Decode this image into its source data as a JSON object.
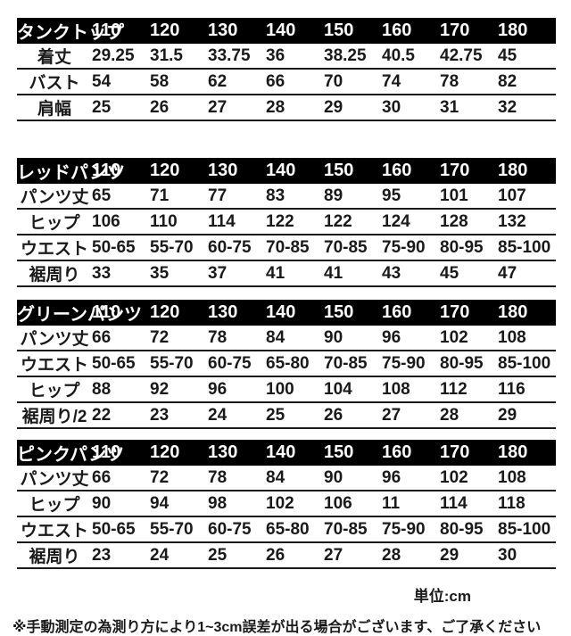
{
  "sizes": [
    "110",
    "120",
    "130",
    "140",
    "150",
    "160",
    "170",
    "180"
  ],
  "tables": [
    {
      "title": "タンクトップ",
      "rows": [
        {
          "label": "着丈",
          "values": [
            "29.25",
            "31.5",
            "33.75",
            "36",
            "38.25",
            "40.5",
            "42.75",
            "45"
          ]
        },
        {
          "label": "バスト",
          "values": [
            "54",
            "58",
            "62",
            "66",
            "70",
            "74",
            "78",
            "82"
          ]
        },
        {
          "label": "肩幅",
          "values": [
            "25",
            "26",
            "27",
            "28",
            "29",
            "30",
            "31",
            "32"
          ]
        }
      ]
    },
    {
      "title": "レッドパンツ",
      "rows": [
        {
          "label": "パンツ丈",
          "values": [
            "65",
            "71",
            "77",
            "83",
            "89",
            "95",
            "101",
            "107"
          ]
        },
        {
          "label": "ヒップ",
          "values": [
            "106",
            "110",
            "114",
            "122",
            "122",
            "124",
            "128",
            "132"
          ]
        },
        {
          "label": "ウエスト",
          "values": [
            "50-65",
            "55-70",
            "60-75",
            "70-85",
            "70-85",
            "75-90",
            "80-95",
            "85-100"
          ]
        },
        {
          "label": "裾周り",
          "values": [
            "33",
            "35",
            "37",
            "41",
            "41",
            "43",
            "45",
            "47"
          ]
        }
      ]
    },
    {
      "title": "グリーンパンツ",
      "rows": [
        {
          "label": "パンツ丈",
          "values": [
            "66",
            "72",
            "78",
            "84",
            "90",
            "96",
            "102",
            "108"
          ]
        },
        {
          "label": "ウエスト",
          "values": [
            "50-65",
            "55-70",
            "60-75",
            "65-80",
            "70-85",
            "75-90",
            "80-95",
            "85-100"
          ]
        },
        {
          "label": "ヒップ",
          "values": [
            "88",
            "92",
            "96",
            "100",
            "104",
            "108",
            "112",
            "116"
          ]
        },
        {
          "label": "裾周り/2",
          "values": [
            "22",
            "23",
            "24",
            "25",
            "26",
            "27",
            "28",
            "29"
          ]
        }
      ]
    },
    {
      "title": "ピンクパンツ",
      "rows": [
        {
          "label": "パンツ丈",
          "values": [
            "66",
            "72",
            "78",
            "84",
            "90",
            "96",
            "102",
            "108"
          ]
        },
        {
          "label": "ヒップ",
          "values": [
            "90",
            "94",
            "98",
            "102",
            "106",
            "11",
            "114",
            "118"
          ]
        },
        {
          "label": "ウエスト",
          "values": [
            "50-65",
            "55-70",
            "60-75",
            "65-80",
            "70-85",
            "75-90",
            "80-95",
            "85-100"
          ]
        },
        {
          "label": "裾周り",
          "values": [
            "23",
            "24",
            "25",
            "26",
            "27",
            "28",
            "29",
            "30"
          ]
        }
      ]
    }
  ],
  "footer": {
    "unit_label": "単位:cm",
    "note": "※手動測定の為測り方により1~3cm誤差が出る場合がございます、ご了承ください"
  },
  "colors": {
    "header_bg": "#000000",
    "header_text": "#ffffff",
    "body_text": "#1a1a1a",
    "line": "#1a1a1a",
    "background": "#ffffff"
  }
}
